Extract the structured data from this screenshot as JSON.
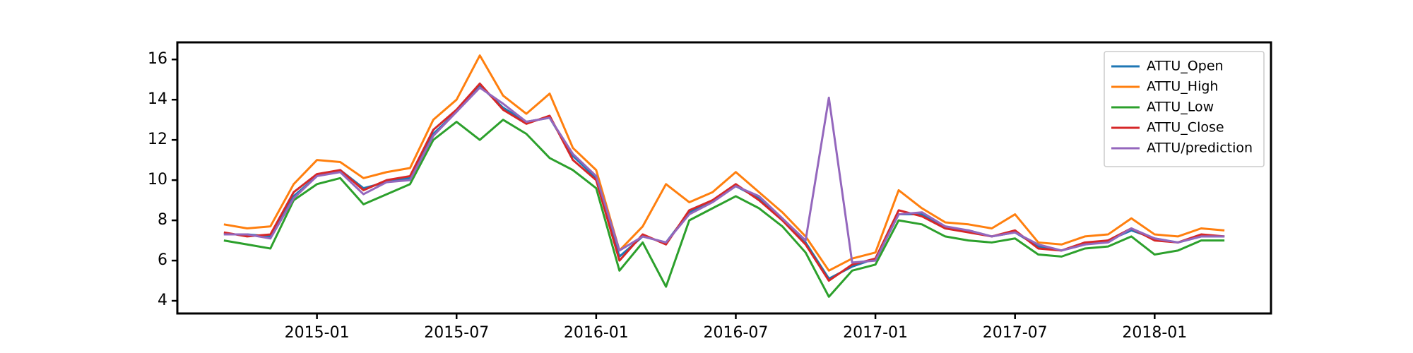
{
  "chart_data": {
    "type": "line",
    "x": [
      "2014-09",
      "2014-10",
      "2014-11",
      "2014-12",
      "2015-01",
      "2015-02",
      "2015-03",
      "2015-04",
      "2015-05",
      "2015-06",
      "2015-07",
      "2015-08",
      "2015-09",
      "2015-10",
      "2015-11",
      "2015-12",
      "2016-01",
      "2016-02",
      "2016-03",
      "2016-04",
      "2016-05",
      "2016-06",
      "2016-07",
      "2016-08",
      "2016-09",
      "2016-10",
      "2016-11",
      "2016-12",
      "2017-01",
      "2017-02",
      "2017-03",
      "2017-04",
      "2017-05",
      "2017-06",
      "2017-07",
      "2017-08",
      "2017-09",
      "2017-10",
      "2017-11",
      "2017-12",
      "2018-01",
      "2018-02",
      "2018-03",
      "2018-04"
    ],
    "series": [
      {
        "name": "ATTU_Open",
        "color": "#1f77b4",
        "values": [
          7.3,
          7.3,
          7.2,
          9.2,
          10.2,
          10.5,
          9.6,
          9.9,
          10.1,
          12.3,
          13.4,
          14.7,
          13.6,
          12.9,
          13.1,
          11.2,
          10.1,
          6.2,
          7.2,
          6.9,
          8.4,
          9.0,
          9.7,
          9.1,
          8.1,
          6.9,
          5.1,
          5.7,
          6.1,
          8.3,
          8.3,
          7.6,
          7.5,
          7.2,
          7.4,
          6.7,
          6.5,
          6.8,
          7.0,
          7.5,
          7.1,
          6.9,
          7.2,
          7.2
        ]
      },
      {
        "name": "ATTU_High",
        "color": "#ff7f0e",
        "values": [
          7.8,
          7.6,
          7.7,
          9.8,
          11.0,
          10.9,
          10.1,
          10.4,
          10.6,
          13.0,
          14.0,
          16.2,
          14.2,
          13.3,
          14.3,
          11.6,
          10.5,
          6.5,
          7.7,
          9.8,
          8.9,
          9.4,
          10.4,
          9.4,
          8.4,
          7.2,
          5.5,
          6.1,
          6.4,
          9.5,
          8.6,
          7.9,
          7.8,
          7.6,
          8.3,
          6.9,
          6.8,
          7.2,
          7.3,
          8.1,
          7.3,
          7.2,
          7.6,
          7.5
        ]
      },
      {
        "name": "ATTU_Low",
        "color": "#2ca02c",
        "values": [
          7.0,
          6.8,
          6.6,
          9.0,
          9.8,
          10.1,
          8.8,
          9.3,
          9.8,
          12.0,
          12.9,
          12.0,
          13.0,
          12.3,
          11.1,
          10.5,
          9.6,
          5.5,
          6.9,
          4.7,
          8.0,
          8.6,
          9.2,
          8.6,
          7.7,
          6.4,
          4.2,
          5.5,
          5.8,
          8.0,
          7.8,
          7.2,
          7.0,
          6.9,
          7.1,
          6.3,
          6.2,
          6.6,
          6.7,
          7.2,
          6.3,
          6.5,
          7.0,
          7.0
        ]
      },
      {
        "name": "ATTU_Close",
        "color": "#d62728",
        "values": [
          7.4,
          7.2,
          7.3,
          9.4,
          10.3,
          10.5,
          9.5,
          10.0,
          10.2,
          12.5,
          13.5,
          14.8,
          13.5,
          12.8,
          13.2,
          11.0,
          10.0,
          6.0,
          7.3,
          6.8,
          8.5,
          9.0,
          9.8,
          9.0,
          8.0,
          6.8,
          5.0,
          5.8,
          6.1,
          8.5,
          8.2,
          7.6,
          7.4,
          7.2,
          7.5,
          6.6,
          6.5,
          6.9,
          7.0,
          7.6,
          7.0,
          6.9,
          7.3,
          7.2
        ]
      },
      {
        "name": "ATTU/prediction",
        "color": "#9467bd",
        "values": [
          7.3,
          7.3,
          7.1,
          9.1,
          10.2,
          10.4,
          9.3,
          9.9,
          10.0,
          12.2,
          13.4,
          14.6,
          13.8,
          12.9,
          13.1,
          11.3,
          10.2,
          6.5,
          7.2,
          6.9,
          8.3,
          8.9,
          9.7,
          9.2,
          8.1,
          7.0,
          14.1,
          5.9,
          6.0,
          8.3,
          8.4,
          7.7,
          7.5,
          7.2,
          7.4,
          6.8,
          6.5,
          6.8,
          6.9,
          7.6,
          7.1,
          6.9,
          7.2,
          7.2
        ]
      }
    ],
    "xlim": [
      "2014-07",
      "2018-06"
    ],
    "xticks": [
      "2015-01",
      "2015-07",
      "2016-01",
      "2016-07",
      "2017-01",
      "2017-07",
      "2018-01"
    ],
    "ylim": [
      3.37,
      16.85
    ],
    "yticks": [
      4,
      6,
      8,
      10,
      12,
      14,
      16
    ],
    "legend": "upper right"
  }
}
